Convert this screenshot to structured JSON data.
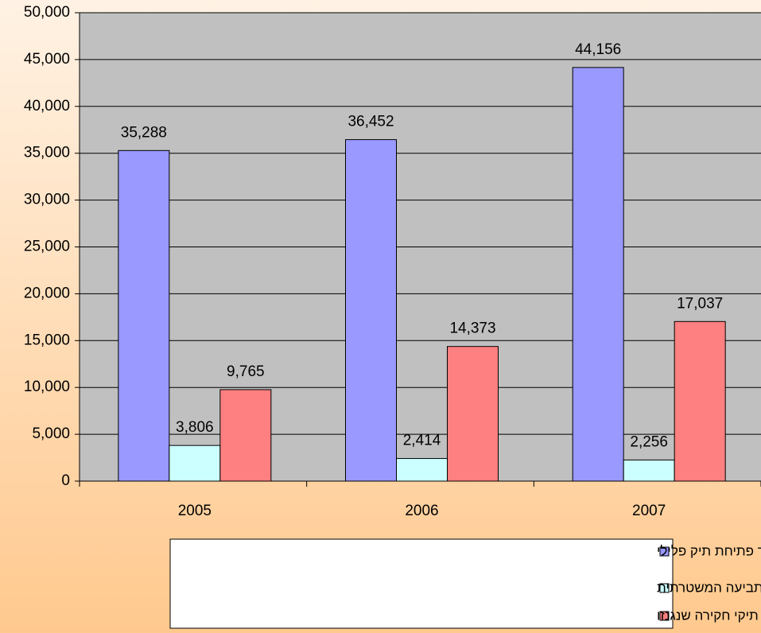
{
  "chart_data": {
    "type": "bar",
    "categories": [
      "2005",
      "2006",
      "2007"
    ],
    "series": [
      {
        "name": "תיקי חקירה שהועברו לצורך פתיחת תיק פלילי",
        "color": "#9999ff",
        "values": [
          35288,
          36452,
          44156
        ],
        "value_labels": [
          "35,288",
          "36,452",
          "44,156"
        ]
      },
      {
        "name": "תיקי חקירה שהועברו מהפרקליטות ליחידת התביעה המשטרתית",
        "color": "#ccffff",
        "values": [
          3806,
          2414,
          2256
        ],
        "value_labels": [
          "3,806",
          "2,414",
          "2,256"
        ]
      },
      {
        "name": "תיקי חקירה שנגנזו",
        "color": "#ff8080",
        "values": [
          9765,
          14373,
          17037
        ],
        "value_labels": [
          "9,765",
          "14,373",
          "17,037"
        ]
      }
    ],
    "ylim": [
      0,
      50000
    ],
    "yticks": [
      0,
      {
        "value": 5000,
        "label": "5,000"
      },
      {
        "value": 10000,
        "label": "10,000"
      },
      {
        "value": 15000,
        "label": "15,000"
      },
      {
        "value": 20000,
        "label": "20,000"
      },
      {
        "value": 25000,
        "label": "25,000"
      },
      {
        "value": 30000,
        "label": "30,000"
      },
      {
        "value": 35000,
        "label": "35,000"
      },
      {
        "value": 40000,
        "label": "40,000"
      },
      {
        "value": 45000,
        "label": "45,000"
      },
      {
        "value": 50000,
        "label": "50,000"
      }
    ],
    "grid": true,
    "plot_background": "#c0c0c0",
    "legend": "bottom"
  }
}
